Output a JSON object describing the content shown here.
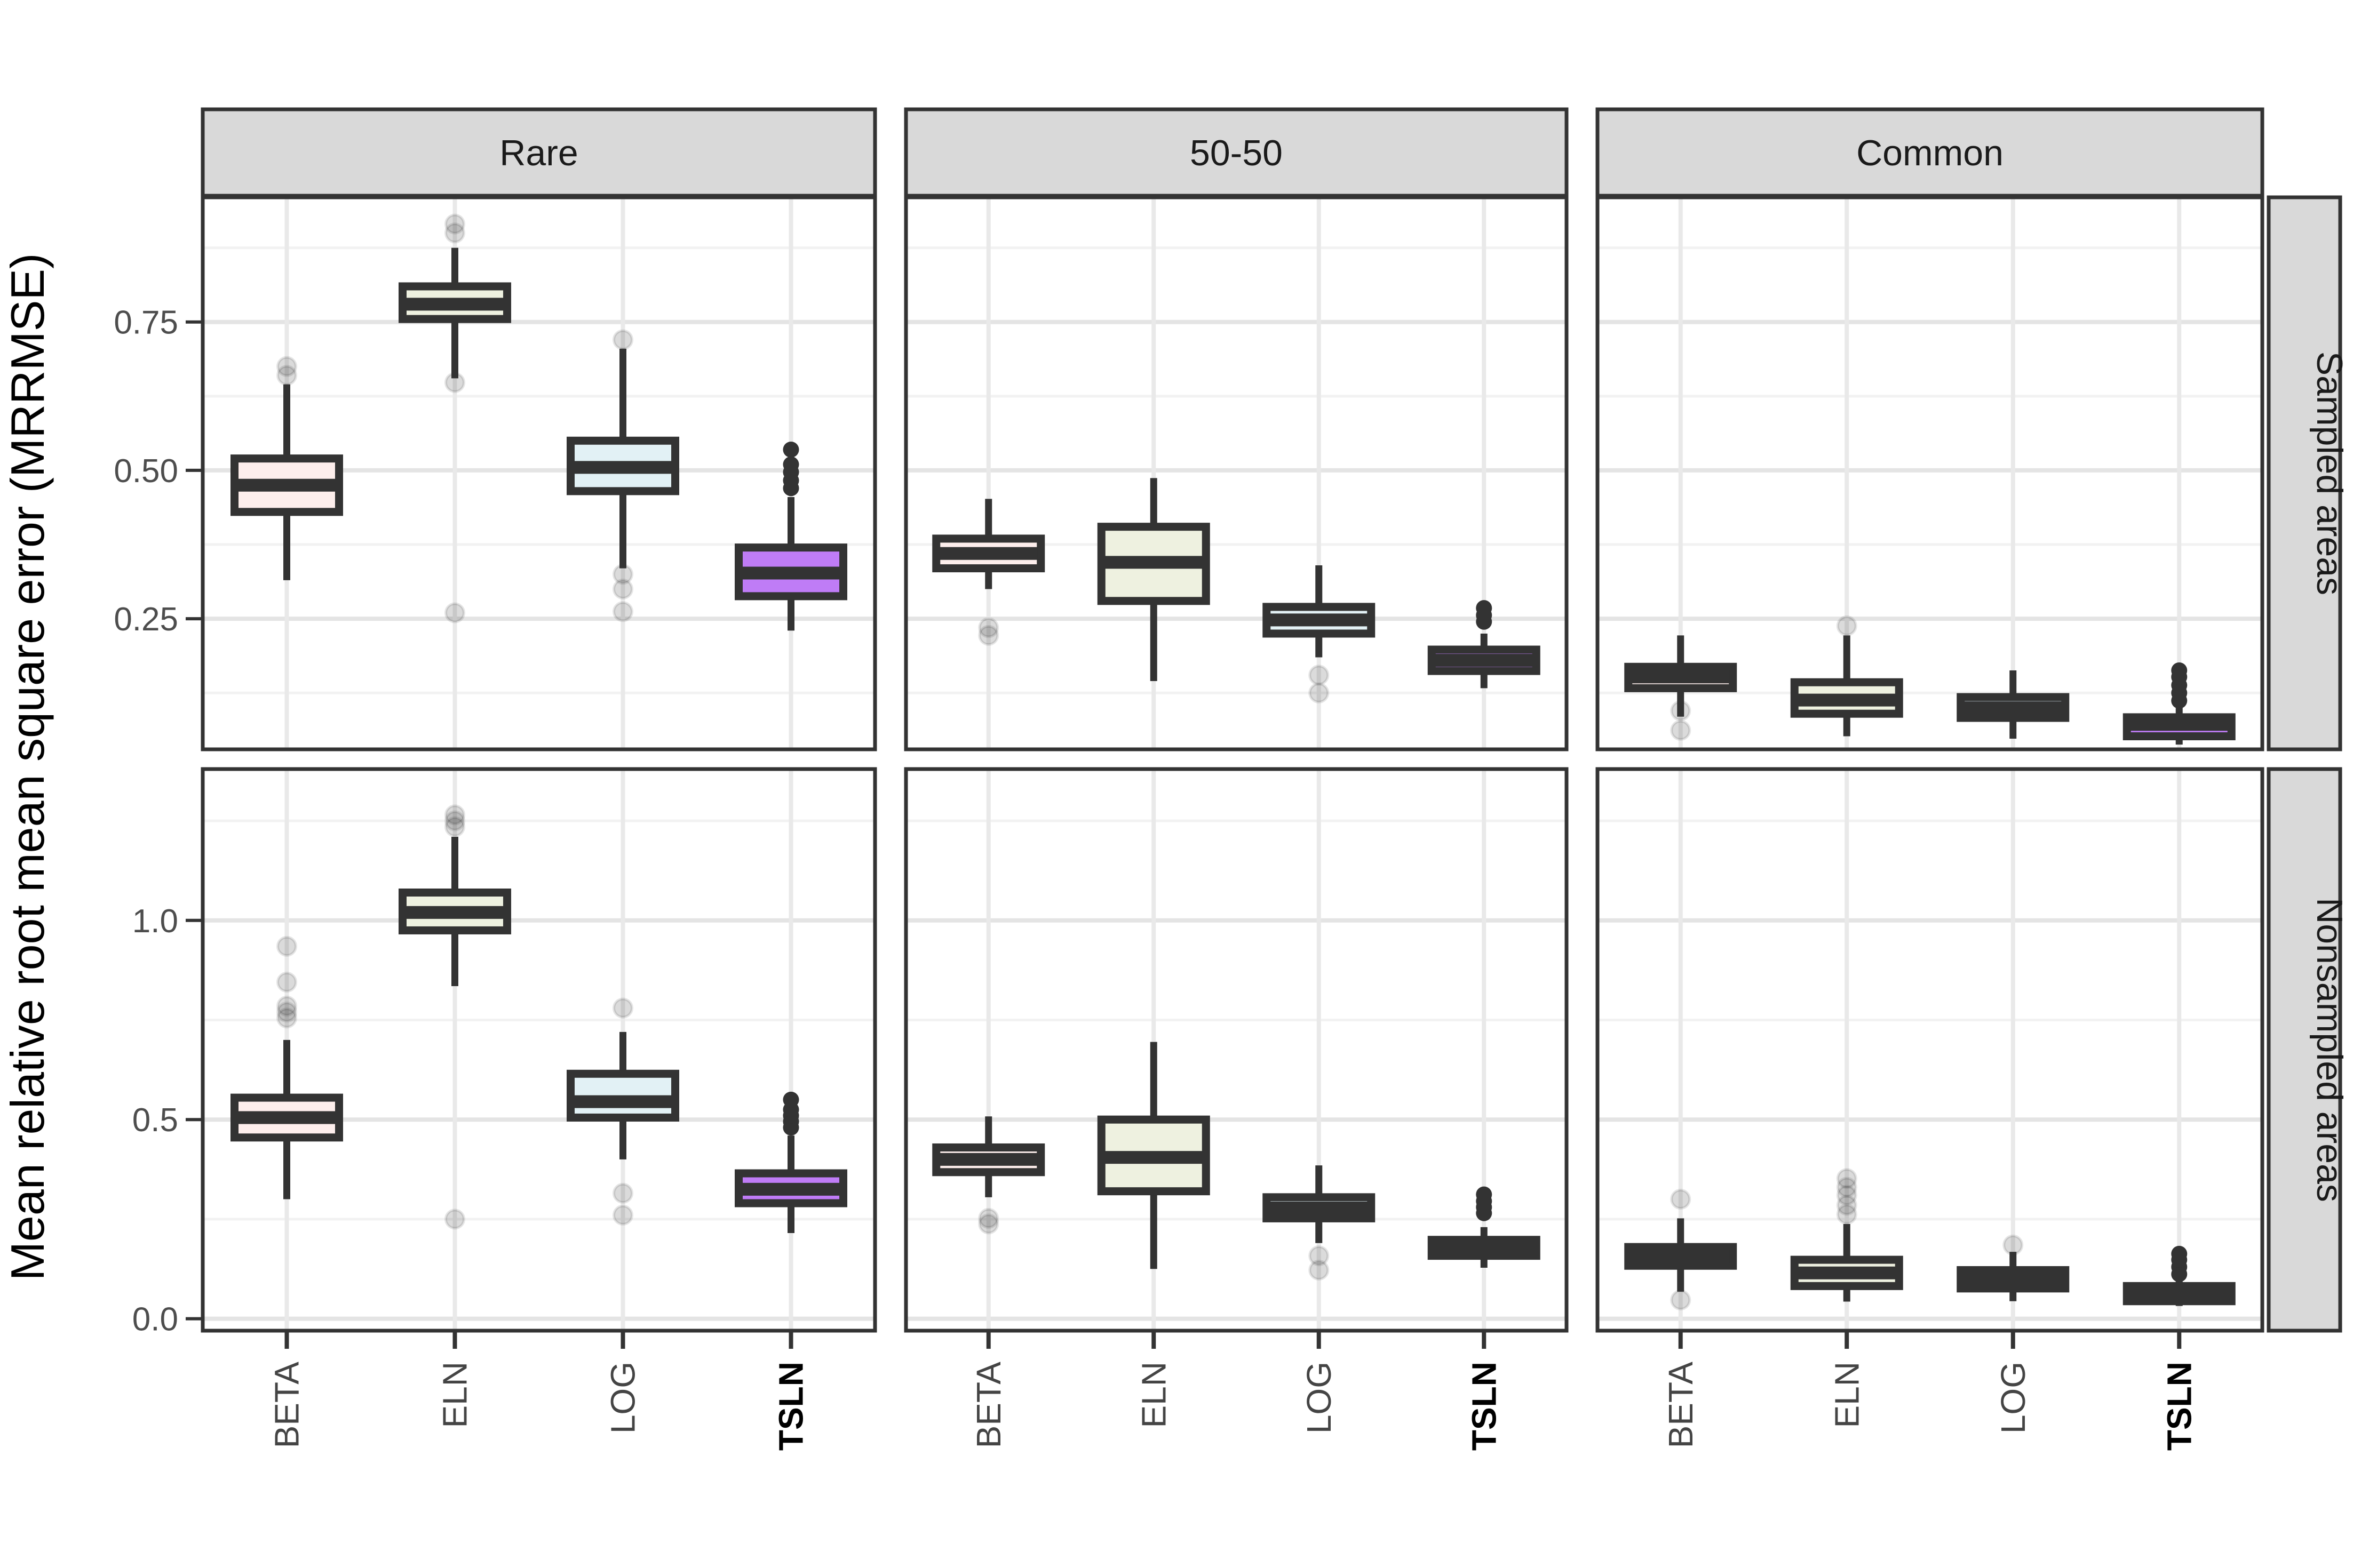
{
  "figure": {
    "ylabel": "Mean relative root mean square error (MRRMSE)"
  },
  "chart_data": {
    "type": "boxplot",
    "title": "",
    "ylabel": "Mean relative root mean square error (MRRMSE)",
    "xlabel": "",
    "facet_columns": [
      "Rare",
      "50-50",
      "Common"
    ],
    "facet_rows": [
      "Sampled areas",
      "Nonsampled areas"
    ],
    "categories": [
      "BETA",
      "ELN",
      "LOG",
      "TSLN"
    ],
    "bold_category": "TSLN",
    "legend": "none",
    "grid": "on",
    "colors": {
      "BETA": "#fdeeec",
      "ELN": "#eef1e0",
      "LOG": "#e2f1f5",
      "TSLN": "#bf7cf6",
      "box_line": "#333333",
      "outlier_gray": "rgba(0,0,0,0.14)",
      "outlier_black": "#333333",
      "strip_bg": "#d9d9d9",
      "strip_border": "#333333",
      "panel_border": "#333333",
      "grid_major": "#e4e4e4",
      "grid_minor": "#f2f2f2",
      "grid_vertical": "#e9e9e9",
      "tick_label": "#4d4d4d",
      "axis_title": "#000000"
    },
    "rows": [
      {
        "label": "Sampled areas",
        "ylim": [
          0.03,
          0.96
        ],
        "ticks": [
          0.25,
          0.5,
          0.75
        ],
        "tick_labels": [
          "0.25",
          "0.50",
          "0.75"
        ],
        "minor": [
          0.125,
          0.375,
          0.625,
          0.875
        ]
      },
      {
        "label": "Nonsampled areas",
        "ylim": [
          -0.03,
          1.38
        ],
        "ticks": [
          0.0,
          0.5,
          1.0
        ],
        "tick_labels": [
          "0.0",
          "0.5",
          "1.0"
        ],
        "minor": [
          0.25,
          0.75,
          1.25
        ]
      }
    ],
    "panels": [
      {
        "row": "Sampled areas",
        "column": "Rare",
        "boxes": [
          {
            "method": "BETA",
            "whisker_low": 0.315,
            "q1": 0.43,
            "median": 0.475,
            "q3": 0.52,
            "whisker_high": 0.645,
            "outliers_gray": [
              0.66,
              0.675
            ],
            "outliers_black": []
          },
          {
            "method": "ELN",
            "whisker_low": 0.655,
            "q1": 0.755,
            "median": 0.78,
            "q3": 0.81,
            "whisker_high": 0.875,
            "outliers_gray": [
              0.9,
              0.915,
              0.648,
              0.26
            ],
            "outliers_black": []
          },
          {
            "method": "LOG",
            "whisker_low": 0.335,
            "q1": 0.465,
            "median": 0.505,
            "q3": 0.55,
            "whisker_high": 0.705,
            "outliers_gray": [
              0.72,
              0.325,
              0.3,
              0.262
            ],
            "outliers_black": []
          },
          {
            "method": "TSLN",
            "whisker_low": 0.23,
            "q1": 0.288,
            "median": 0.327,
            "q3": 0.37,
            "whisker_high": 0.455,
            "outliers_gray": [],
            "outliers_black": [
              0.47,
              0.483,
              0.497,
              0.51,
              0.535
            ]
          }
        ]
      },
      {
        "row": "Sampled areas",
        "column": "50-50",
        "boxes": [
          {
            "method": "BETA",
            "whisker_low": 0.3,
            "q1": 0.335,
            "median": 0.36,
            "q3": 0.385,
            "whisker_high": 0.452,
            "outliers_gray": [
              0.235,
              0.222
            ],
            "outliers_black": []
          },
          {
            "method": "ELN",
            "whisker_low": 0.145,
            "q1": 0.28,
            "median": 0.345,
            "q3": 0.405,
            "whisker_high": 0.487,
            "outliers_gray": [],
            "outliers_black": []
          },
          {
            "method": "LOG",
            "whisker_low": 0.185,
            "q1": 0.225,
            "median": 0.248,
            "q3": 0.27,
            "whisker_high": 0.34,
            "outliers_gray": [
              0.155,
              0.125
            ],
            "outliers_black": []
          },
          {
            "method": "TSLN",
            "whisker_low": 0.133,
            "q1": 0.162,
            "median": 0.18,
            "q3": 0.198,
            "whisker_high": 0.225,
            "outliers_gray": [],
            "outliers_black": [
              0.245,
              0.256,
              0.268
            ]
          }
        ]
      },
      {
        "row": "Sampled areas",
        "column": "Common",
        "boxes": [
          {
            "method": "BETA",
            "whisker_low": 0.085,
            "q1": 0.133,
            "median": 0.152,
            "q3": 0.169,
            "whisker_high": 0.222,
            "outliers_gray": [
              0.095,
              0.062
            ],
            "outliers_black": []
          },
          {
            "method": "ELN",
            "whisker_low": 0.052,
            "q1": 0.09,
            "median": 0.113,
            "q3": 0.143,
            "whisker_high": 0.222,
            "outliers_gray": [
              0.238
            ],
            "outliers_black": []
          },
          {
            "method": "LOG",
            "whisker_low": 0.048,
            "q1": 0.083,
            "median": 0.1,
            "q3": 0.118,
            "whisker_high": 0.163,
            "outliers_gray": [],
            "outliers_black": []
          },
          {
            "method": "TSLN",
            "whisker_low": 0.038,
            "q1": 0.052,
            "median": 0.072,
            "q3": 0.084,
            "whisker_high": 0.102,
            "outliers_gray": [],
            "outliers_black": [
              0.112,
              0.125,
              0.138,
              0.152,
              0.163
            ]
          }
        ]
      },
      {
        "row": "Nonsampled areas",
        "column": "Rare",
        "boxes": [
          {
            "method": "BETA",
            "whisker_low": 0.3,
            "q1": 0.455,
            "median": 0.505,
            "q3": 0.555,
            "whisker_high": 0.7,
            "outliers_gray": [
              0.755,
              0.77,
              0.785,
              0.845,
              0.935
            ],
            "outliers_black": []
          },
          {
            "method": "ELN",
            "whisker_low": 0.835,
            "q1": 0.975,
            "median": 1.02,
            "q3": 1.07,
            "whisker_high": 1.21,
            "outliers_gray": [
              1.235,
              1.25,
              1.265,
              0.25
            ],
            "outliers_black": []
          },
          {
            "method": "LOG",
            "whisker_low": 0.4,
            "q1": 0.505,
            "median": 0.545,
            "q3": 0.615,
            "whisker_high": 0.72,
            "outliers_gray": [
              0.78,
              0.315,
              0.26
            ],
            "outliers_black": []
          },
          {
            "method": "TSLN",
            "whisker_low": 0.215,
            "q1": 0.29,
            "median": 0.325,
            "q3": 0.365,
            "whisker_high": 0.46,
            "outliers_gray": [],
            "outliers_black": [
              0.48,
              0.495,
              0.51,
              0.525,
              0.55
            ]
          }
        ]
      },
      {
        "row": "Nonsampled areas",
        "column": "50-50",
        "boxes": [
          {
            "method": "BETA",
            "whisker_low": 0.305,
            "q1": 0.368,
            "median": 0.4,
            "q3": 0.43,
            "whisker_high": 0.508,
            "outliers_gray": [
              0.252,
              0.238
            ],
            "outliers_black": []
          },
          {
            "method": "ELN",
            "whisker_low": 0.125,
            "q1": 0.32,
            "median": 0.405,
            "q3": 0.5,
            "whisker_high": 0.695,
            "outliers_gray": [],
            "outliers_black": []
          },
          {
            "method": "LOG",
            "whisker_low": 0.19,
            "q1": 0.252,
            "median": 0.278,
            "q3": 0.305,
            "whisker_high": 0.385,
            "outliers_gray": [
              0.158,
              0.122
            ],
            "outliers_black": []
          },
          {
            "method": "TSLN",
            "whisker_low": 0.128,
            "q1": 0.158,
            "median": 0.178,
            "q3": 0.198,
            "whisker_high": 0.23,
            "outliers_gray": [],
            "outliers_black": [
              0.265,
              0.28,
              0.295,
              0.312
            ]
          }
        ]
      },
      {
        "row": "Nonsampled areas",
        "column": "Common",
        "boxes": [
          {
            "method": "BETA",
            "whisker_low": 0.068,
            "q1": 0.133,
            "median": 0.155,
            "q3": 0.18,
            "whisker_high": 0.252,
            "outliers_gray": [
              0.3,
              0.047
            ],
            "outliers_black": []
          },
          {
            "method": "ELN",
            "whisker_low": 0.043,
            "q1": 0.082,
            "median": 0.115,
            "q3": 0.148,
            "whisker_high": 0.238,
            "outliers_gray": [
              0.262,
              0.285,
              0.31,
              0.33,
              0.352
            ],
            "outliers_black": []
          },
          {
            "method": "LOG",
            "whisker_low": 0.044,
            "q1": 0.076,
            "median": 0.098,
            "q3": 0.122,
            "whisker_high": 0.168,
            "outliers_gray": [
              0.185
            ],
            "outliers_black": []
          },
          {
            "method": "TSLN",
            "whisker_low": 0.032,
            "q1": 0.044,
            "median": 0.066,
            "q3": 0.082,
            "whisker_high": 0.1,
            "outliers_gray": [],
            "outliers_black": [
              0.112,
              0.13,
              0.148,
              0.163
            ]
          }
        ]
      }
    ]
  }
}
